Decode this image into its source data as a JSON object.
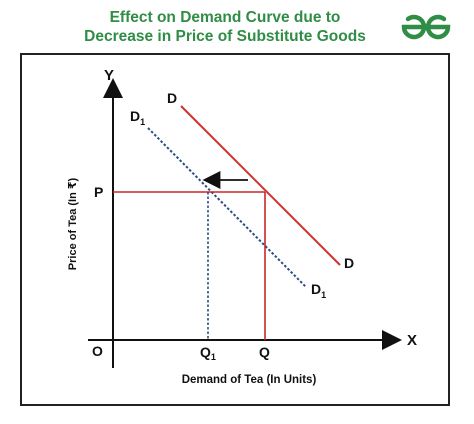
{
  "title": {
    "line1": "Effect on Demand Curve due to",
    "line2": "Decrease in Price of Substitute Goods"
  },
  "logo": {
    "icon": "geeksforgeeks-logo-icon",
    "color": "#2f8d46"
  },
  "axes": {
    "y_letter": "Y",
    "x_letter": "X",
    "origin": "O",
    "y_axis_title": "Price of Tea (In ₹)",
    "x_axis_title": "Demand of Tea (In Units)"
  },
  "points": {
    "price": "P",
    "q": "Q",
    "q1": "Q",
    "q1_sub": "1"
  },
  "curves": {
    "original": {
      "label": "D",
      "color": "#d32f2f"
    },
    "shifted": {
      "label": "D",
      "sub": "1",
      "color": "#2d4a86"
    }
  },
  "colors": {
    "guide_red": "#c62828",
    "guide_blue": "#2d4a86",
    "axis": "#111111"
  }
}
